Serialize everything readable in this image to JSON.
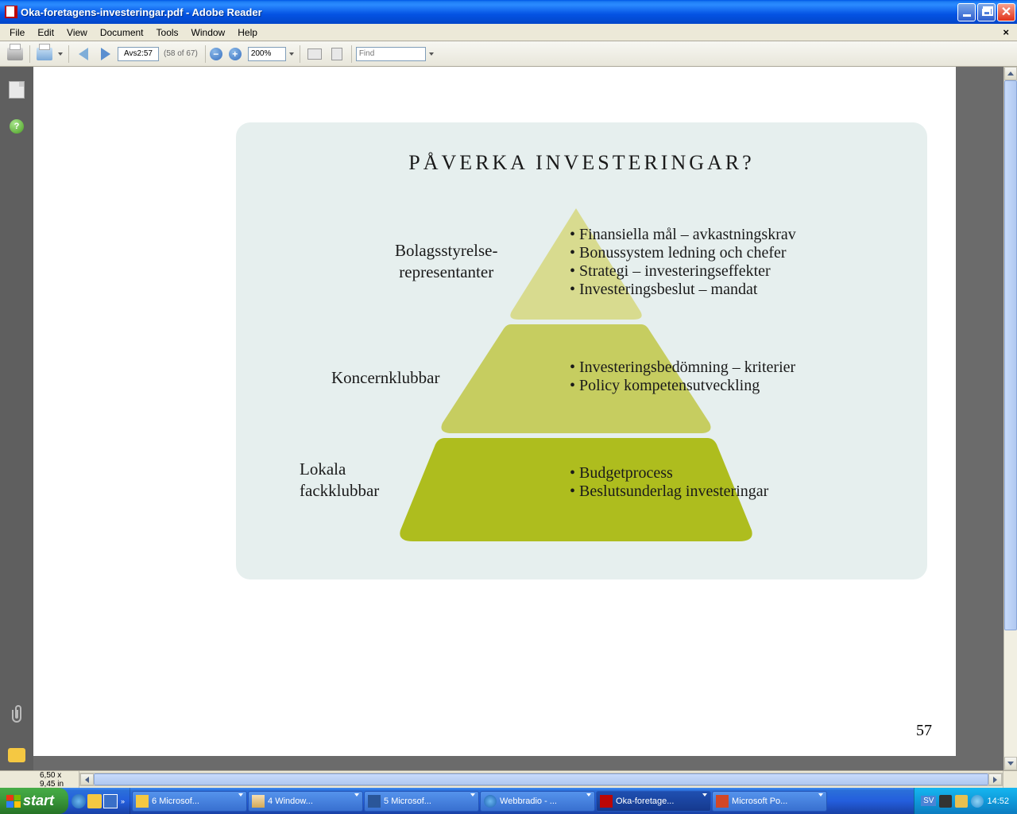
{
  "window": {
    "title": "Oka-foretagens-investeringar.pdf - Adobe Reader"
  },
  "menu": {
    "file": "File",
    "edit": "Edit",
    "view": "View",
    "document": "Document",
    "tools": "Tools",
    "window": "Window",
    "help": "Help"
  },
  "toolbar": {
    "page_input": "Avs2:57",
    "page_count": "(58 of 67)",
    "zoom": "200%",
    "find_placeholder": "Find"
  },
  "statusbar": {
    "dimensions": "6,50 x 9,45 in"
  },
  "document": {
    "page_number": "57",
    "diagram": {
      "title": "PÅVERKA INVESTERINGAR?",
      "background": "#e6efee",
      "levels": [
        {
          "label_line1": "Bolagsstyrelse-",
          "label_line2": "representanter",
          "color": "#d8db8f",
          "bullets": [
            "Finansiella mål – avkastningskrav",
            "Bonussystem ledning och chefer",
            "Strategi – investeringseffekter",
            "Investeringsbeslut – mandat"
          ]
        },
        {
          "label_line1": "Koncernklubbar",
          "label_line2": "",
          "color": "#c6cd60",
          "bullets": [
            "Investeringsbedömning – kriterier",
            "Policy kompetensutveckling"
          ]
        },
        {
          "label_line1": "Lokala",
          "label_line2": "fackklubbar",
          "color": "#aebd1e",
          "bullets": [
            "Budgetprocess",
            "Beslutsunderlag investeringar"
          ]
        }
      ]
    }
  },
  "taskbar": {
    "start": "start",
    "items": [
      {
        "label": "6 Microsof...",
        "type": "outlook"
      },
      {
        "label": "4 Window...",
        "type": "folder"
      },
      {
        "label": "5 Microsof...",
        "type": "word"
      },
      {
        "label": "Webbradio - ...",
        "type": "ie"
      },
      {
        "label": "Oka-foretage...",
        "type": "pdf",
        "active": true
      },
      {
        "label": "Microsoft Po...",
        "type": "pp"
      }
    ],
    "lang": "SV",
    "clock": "14:52"
  }
}
